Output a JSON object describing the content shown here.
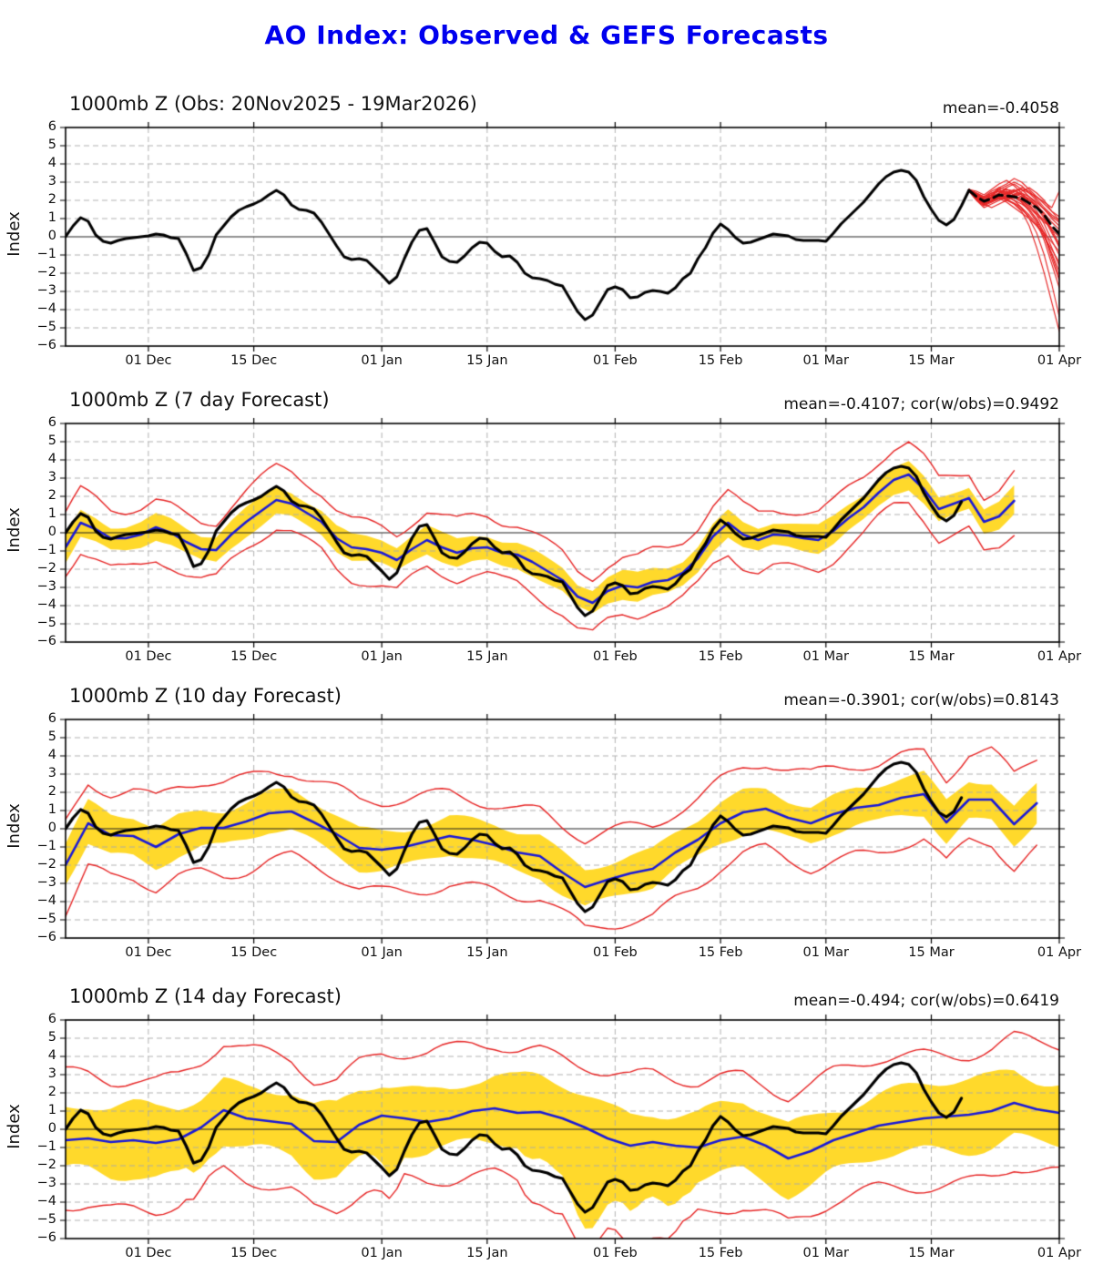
{
  "page_title": "AO Index: Observed & GEFS Forecasts",
  "colors": {
    "title": "#0000EE",
    "observed": "#000000",
    "ensemble_red": "#E62424",
    "forecast_blue": "#1A1AD8",
    "spread_band": "#FFD92B",
    "grid": "#A8A8A8",
    "zero_line": "#222222",
    "frame": "#000000"
  },
  "chart_data": {
    "type": "line",
    "ylabel": "Index",
    "ylim": [
      -6,
      6
    ],
    "grid": "dashed",
    "y_ticklabels": [
      "6",
      "5",
      "4",
      "3",
      "2",
      "1",
      "0",
      "−1",
      "−2",
      "−3",
      "−4",
      "−5",
      "−6"
    ],
    "y_tick_values": [
      6,
      5,
      4,
      3,
      2,
      1,
      0,
      -1,
      -2,
      -3,
      -4,
      -5,
      -6
    ],
    "x_ticklabels": [
      "01 Dec",
      "15 Dec",
      "01 Jan",
      "15 Jan",
      "01 Feb",
      "15 Feb",
      "01 Mar",
      "15 Mar",
      "01 Apr"
    ],
    "x_tick_days": [
      11,
      25,
      42,
      56,
      73,
      87,
      101,
      115,
      132
    ],
    "total_days": 132,
    "obs_daily": [
      0.0,
      0.6,
      1.05,
      0.85,
      0.1,
      -0.25,
      -0.35,
      -0.2,
      -0.1,
      -0.05,
      0.0,
      0.05,
      0.15,
      0.1,
      -0.05,
      -0.1,
      -0.9,
      -1.85,
      -1.7,
      -1.0,
      0.1,
      0.6,
      1.1,
      1.45,
      1.65,
      1.8,
      2.0,
      2.3,
      2.55,
      2.3,
      1.75,
      1.5,
      1.45,
      1.3,
      0.8,
      0.15,
      -0.5,
      -1.1,
      -1.25,
      -1.2,
      -1.3,
      -1.7,
      -2.1,
      -2.55,
      -2.2,
      -1.2,
      -0.3,
      0.35,
      0.45,
      -0.3,
      -1.1,
      -1.35,
      -1.4,
      -1.05,
      -0.6,
      -0.3,
      -0.35,
      -0.8,
      -1.1,
      -1.05,
      -1.4,
      -2.0,
      -2.25,
      -2.3,
      -2.4,
      -2.6,
      -2.7,
      -3.4,
      -4.1,
      -4.55,
      -4.3,
      -3.6,
      -2.9,
      -2.75,
      -2.9,
      -3.35,
      -3.3,
      -3.05,
      -2.95,
      -3.0,
      -3.1,
      -2.8,
      -2.3,
      -2.0,
      -1.2,
      -0.6,
      0.2,
      0.7,
      0.4,
      -0.05,
      -0.35,
      -0.3,
      -0.15,
      0.0,
      0.15,
      0.1,
      0.05,
      -0.15,
      -0.2,
      -0.2,
      -0.2,
      -0.25,
      0.2,
      0.7,
      1.1,
      1.5,
      1.9,
      2.4,
      2.9,
      3.3,
      3.55,
      3.65,
      3.55,
      3.1,
      2.2,
      1.5,
      0.9,
      0.65,
      0.95,
      1.7,
      2.55
    ],
    "panels": [
      {
        "id": "obs",
        "title": "1000mb Z (Obs: 20Nov2025 - 19Mar2026)",
        "stats": "mean=-0.4058",
        "kind": "ensemble",
        "ensemble": {
          "start_day": 120,
          "mean": [
            2.55,
            2.2,
            1.95,
            2.1,
            2.3,
            2.25,
            2.2,
            2.1,
            1.85,
            1.6,
            1.2,
            0.6,
            0.15
          ],
          "members": [
            [
              2.6,
              2.4,
              2.2,
              2.5,
              2.7,
              2.6,
              2.5,
              2.6,
              2.4,
              2.2,
              1.9,
              1.6,
              2.5
            ],
            [
              2.5,
              2.1,
              1.8,
              2.0,
              2.4,
              2.5,
              2.3,
              2.0,
              1.6,
              1.2,
              0.8,
              0.5,
              0.3
            ],
            [
              2.6,
              2.3,
              2.0,
              2.2,
              2.6,
              2.8,
              3.0,
              2.8,
              2.4,
              2.0,
              1.5,
              1.0,
              0.6
            ],
            [
              2.5,
              2.0,
              1.7,
              1.9,
              2.1,
              1.9,
              1.6,
              1.3,
              1.0,
              0.6,
              0.2,
              -0.3,
              -0.8
            ],
            [
              2.55,
              2.2,
              1.9,
              2.1,
              2.3,
              2.1,
              2.3,
              2.5,
              2.7,
              2.4,
              2.0,
              1.4,
              0.9
            ],
            [
              2.6,
              2.5,
              2.3,
              2.6,
              2.9,
              3.1,
              2.8,
              2.4,
              2.0,
              1.7,
              1.3,
              0.8,
              0.4
            ],
            [
              2.5,
              2.1,
              1.8,
              1.6,
              1.8,
              2.0,
              1.8,
              1.5,
              1.1,
              0.6,
              0.0,
              -0.7,
              -1.4
            ],
            [
              2.55,
              2.3,
              2.1,
              2.4,
              2.5,
              2.3,
              2.1,
              2.2,
              2.0,
              1.6,
              1.0,
              0.2,
              -0.5
            ],
            [
              2.6,
              2.2,
              2.0,
              2.3,
              2.7,
              2.9,
              3.2,
              3.0,
              2.6,
              2.2,
              1.8,
              1.4,
              1.1
            ],
            [
              2.5,
              2.0,
              1.6,
              1.8,
              2.0,
              2.2,
              2.0,
              1.6,
              1.0,
              0.2,
              -1.0,
              -2.6,
              -4.4
            ],
            [
              2.55,
              2.25,
              2.0,
              2.2,
              2.4,
              2.6,
              2.4,
              2.2,
              1.8,
              1.2,
              0.4,
              -0.6,
              -1.6
            ],
            [
              2.6,
              2.35,
              2.15,
              2.3,
              2.2,
              2.0,
              2.2,
              2.4,
              2.2,
              1.9,
              1.5,
              1.1,
              0.8
            ],
            [
              2.5,
              2.15,
              1.85,
              2.0,
              2.2,
              2.4,
              2.6,
              2.3,
              1.9,
              1.4,
              0.7,
              -0.2,
              -1.0
            ],
            [
              2.55,
              2.3,
              2.05,
              1.9,
              2.1,
              2.3,
              2.5,
              2.7,
              2.5,
              2.1,
              1.6,
              1.2,
              0.9
            ],
            [
              2.6,
              2.4,
              2.2,
              2.4,
              2.6,
              2.4,
              2.2,
              1.9,
              1.4,
              0.8,
              -0.2,
              -1.5,
              -2.8
            ],
            [
              2.5,
              2.1,
              1.9,
              2.1,
              2.3,
              2.5,
              2.3,
              2.0,
              1.7,
              1.3,
              0.9,
              0.4,
              0.0
            ],
            [
              2.55,
              2.2,
              1.95,
              2.15,
              2.35,
              2.2,
              2.0,
              1.8,
              1.5,
              1.0,
              0.2,
              -1.0,
              -2.2
            ],
            [
              2.6,
              2.3,
              2.0,
              2.2,
              2.4,
              2.7,
              2.9,
              2.6,
              2.2,
              1.8,
              1.2,
              0.4,
              -0.4
            ],
            [
              2.5,
              2.05,
              1.75,
              1.95,
              2.15,
              2.05,
              1.85,
              1.6,
              1.2,
              0.7,
              0.0,
              -0.9,
              -1.9
            ],
            [
              2.55,
              2.35,
              2.1,
              2.3,
              2.5,
              2.6,
              2.5,
              2.3,
              2.1,
              1.7,
              1.1,
              0.3,
              -0.6
            ],
            [
              2.6,
              2.2,
              1.9,
              2.0,
              2.2,
              2.4,
              2.2,
              1.9,
              1.5,
              0.9,
              0.1,
              -1.2,
              -2.4
            ],
            [
              2.5,
              2.1,
              1.8,
              2.0,
              2.3,
              2.1,
              1.8,
              1.4,
              0.6,
              -0.6,
              -2.0,
              -3.6,
              -5.2
            ]
          ]
        }
      },
      {
        "id": "f7",
        "title": "1000mb Z (7 day Forecast)",
        "stats": "mean=-0.4107; cor(w/obs)=0.9492",
        "kind": "forecast",
        "forecast": {
          "step": 2,
          "end_day": 126,
          "mean": [
            -0.8,
            0.55,
            0.2,
            -0.3,
            -0.3,
            -0.1,
            0.3,
            0.0,
            -0.5,
            -0.9,
            -0.95,
            -0.1,
            0.6,
            1.2,
            1.8,
            1.6,
            1.1,
            0.6,
            -0.3,
            -0.8,
            -0.9,
            -1.1,
            -1.5,
            -0.9,
            -0.4,
            -0.8,
            -1.1,
            -0.85,
            -0.8,
            -1.1,
            -1.2,
            -1.6,
            -2.1,
            -2.6,
            -3.5,
            -3.85,
            -3.2,
            -2.9,
            -3.0,
            -2.7,
            -2.6,
            -2.2,
            -1.4,
            -0.2,
            0.55,
            -0.1,
            -0.4,
            -0.1,
            -0.15,
            -0.3,
            -0.4,
            0.1,
            0.8,
            1.4,
            2.2,
            2.9,
            3.2,
            2.4,
            1.3,
            1.6,
            1.9,
            0.6,
            0.9,
            1.75
          ],
          "band_halfwidth": 0.7,
          "envelope_halfwidth": 1.6,
          "band_wiggle": 0.18,
          "envelope_wiggle": 0.45
        }
      },
      {
        "id": "f10",
        "title": "1000mb Z (10 day Forecast)",
        "stats": "mean=-0.3901; cor(w/obs)=0.8143",
        "kind": "forecast",
        "forecast": {
          "step": 3,
          "end_day": 129,
          "mean": [
            -2.0,
            0.3,
            -0.35,
            -0.4,
            -1.0,
            -0.3,
            0.05,
            0.05,
            0.4,
            0.85,
            0.95,
            0.35,
            -0.3,
            -1.05,
            -1.15,
            -1.0,
            -0.7,
            -0.4,
            -0.6,
            -0.9,
            -1.3,
            -1.5,
            -2.4,
            -3.2,
            -2.8,
            -2.45,
            -2.2,
            -1.3,
            -0.6,
            0.3,
            0.9,
            1.1,
            0.6,
            0.3,
            0.8,
            1.15,
            1.3,
            1.7,
            1.9,
            0.35,
            1.6,
            1.6,
            0.25,
            1.4
          ],
          "band_halfwidth": 1.05,
          "envelope_halfwidth": 2.45,
          "band_wiggle": 0.3,
          "envelope_wiggle": 0.55
        }
      },
      {
        "id": "f14",
        "title": "1000mb Z (14 day Forecast)",
        "stats": "mean=-0.494; cor(w/obs)=0.6419",
        "kind": "forecast",
        "forecast": {
          "step": 3,
          "end_day": 132,
          "mean": [
            -0.6,
            -0.5,
            -0.7,
            -0.6,
            -0.75,
            -0.55,
            0.1,
            1.05,
            0.6,
            0.45,
            0.3,
            -0.65,
            -0.7,
            0.25,
            0.75,
            0.6,
            0.4,
            0.6,
            1.0,
            1.15,
            0.9,
            0.95,
            0.6,
            0.1,
            -0.5,
            -0.9,
            -0.7,
            -0.9,
            -1.0,
            -0.6,
            -0.4,
            -0.9,
            -1.6,
            -1.2,
            -0.6,
            -0.2,
            0.2,
            0.4,
            0.6,
            0.7,
            0.8,
            1.0,
            1.45,
            1.1,
            0.9
          ],
          "band_halfwidth": 1.8,
          "envelope_halfwidth": 3.55,
          "band_wiggle": 0.5,
          "envelope_wiggle": 0.6,
          "deep_coupling": {
            "threshold": 1.5,
            "band_factor": 1.1,
            "envelope_factor": 1.2
          }
        }
      }
    ]
  }
}
